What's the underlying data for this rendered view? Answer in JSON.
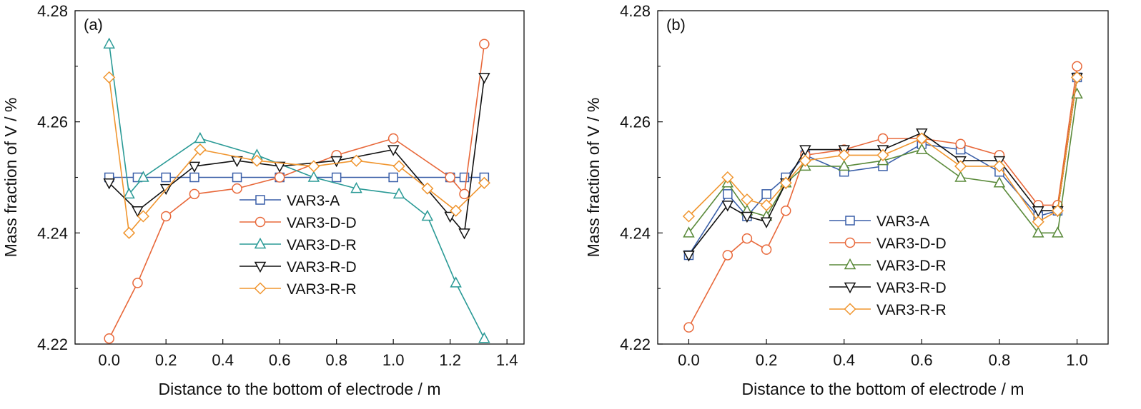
{
  "chart_data": [
    {
      "type": "line",
      "panel_label": "(a)",
      "xlabel": "Distance to the bottom of electrode / m",
      "ylabel": "Mass fraction of V / %",
      "xlim": [
        -0.12,
        1.46
      ],
      "ylim": [
        4.22,
        4.28
      ],
      "x_ticks": [
        0.0,
        0.2,
        0.4,
        0.6,
        0.8,
        1.0,
        1.2,
        1.4
      ],
      "x_tick_labels": [
        "0.0",
        "0.2",
        "0.4",
        "0.6",
        "0.8",
        "1.0",
        "1.2",
        "1.4"
      ],
      "y_ticks": [
        4.22,
        4.24,
        4.26,
        4.28
      ],
      "y_tick_labels": [
        "4.22",
        "4.24",
        "4.26",
        "4.28"
      ],
      "grid": false,
      "legend_position": "center-right",
      "series": [
        {
          "name": "VAR3-A",
          "color": "#3a5fa8",
          "marker": "square",
          "x": [
            0.0,
            0.1,
            0.2,
            0.3,
            0.45,
            0.6,
            0.8,
            1.0,
            1.2,
            1.25,
            1.32
          ],
          "y": [
            4.25,
            4.25,
            4.25,
            4.25,
            4.25,
            4.25,
            4.25,
            4.25,
            4.25,
            4.25,
            4.25
          ]
        },
        {
          "name": "VAR3-D-D",
          "color": "#e8683a",
          "marker": "circle",
          "x": [
            0.0,
            0.1,
            0.2,
            0.3,
            0.45,
            0.6,
            0.8,
            1.0,
            1.2,
            1.25,
            1.32
          ],
          "y": [
            4.221,
            4.231,
            4.243,
            4.247,
            4.248,
            4.25,
            4.254,
            4.257,
            4.25,
            4.247,
            4.274
          ]
        },
        {
          "name": "VAR3-D-R",
          "color": "#2a9a96",
          "marker": "triangle-up",
          "x": [
            0.0,
            0.07,
            0.12,
            0.32,
            0.52,
            0.72,
            0.87,
            1.02,
            1.12,
            1.22,
            1.32
          ],
          "y": [
            4.274,
            4.247,
            4.25,
            4.257,
            4.254,
            4.25,
            4.248,
            4.247,
            4.243,
            4.231,
            4.221
          ]
        },
        {
          "name": "VAR3-R-D",
          "color": "#111111",
          "marker": "triangle-down",
          "x": [
            0.0,
            0.1,
            0.2,
            0.3,
            0.45,
            0.6,
            0.8,
            1.0,
            1.2,
            1.25,
            1.32
          ],
          "y": [
            4.249,
            4.244,
            4.248,
            4.252,
            4.253,
            4.252,
            4.253,
            4.255,
            4.243,
            4.24,
            4.268
          ]
        },
        {
          "name": "VAR3-R-R",
          "color": "#f0952e",
          "marker": "diamond",
          "x": [
            0.0,
            0.07,
            0.12,
            0.32,
            0.52,
            0.72,
            0.87,
            1.02,
            1.12,
            1.22,
            1.32
          ],
          "y": [
            4.268,
            4.24,
            4.243,
            4.255,
            4.253,
            4.252,
            4.253,
            4.252,
            4.248,
            4.244,
            4.249
          ]
        }
      ]
    },
    {
      "type": "line",
      "panel_label": "(b)",
      "xlabel": "Distance to the bottom of electrode / m",
      "ylabel": "Mass fraction of V / %",
      "xlim": [
        -0.08,
        1.08
      ],
      "ylim": [
        4.22,
        4.28
      ],
      "x_ticks": [
        0.0,
        0.2,
        0.4,
        0.6,
        0.8,
        1.0
      ],
      "x_tick_labels": [
        "0.0",
        "0.2",
        "0.4",
        "0.6",
        "0.8",
        "1.0"
      ],
      "y_ticks": [
        4.22,
        4.24,
        4.26,
        4.28
      ],
      "y_tick_labels": [
        "4.22",
        "4.24",
        "4.26",
        "4.28"
      ],
      "grid": false,
      "legend_position": "lower-center",
      "series": [
        {
          "name": "VAR3-A",
          "color": "#3a5fa8",
          "marker": "square",
          "x": [
            0.0,
            0.1,
            0.15,
            0.2,
            0.25,
            0.3,
            0.4,
            0.5,
            0.6,
            0.7,
            0.8,
            0.9,
            0.95,
            1.0
          ],
          "y": [
            4.236,
            4.247,
            4.243,
            4.247,
            4.25,
            4.254,
            4.251,
            4.252,
            4.256,
            4.255,
            4.251,
            4.243,
            4.244,
            4.268
          ]
        },
        {
          "name": "VAR3-D-D",
          "color": "#e8683a",
          "marker": "circle",
          "x": [
            0.0,
            0.1,
            0.15,
            0.2,
            0.25,
            0.3,
            0.4,
            0.5,
            0.6,
            0.7,
            0.8,
            0.9,
            0.95,
            1.0
          ],
          "y": [
            4.223,
            4.236,
            4.239,
            4.237,
            4.244,
            4.254,
            4.255,
            4.257,
            4.257,
            4.256,
            4.254,
            4.245,
            4.245,
            4.27
          ]
        },
        {
          "name": "VAR3-D-R",
          "color": "#5a8a3a",
          "marker": "triangle-up",
          "x": [
            0.0,
            0.1,
            0.15,
            0.2,
            0.25,
            0.3,
            0.4,
            0.5,
            0.6,
            0.7,
            0.8,
            0.9,
            0.95,
            1.0
          ],
          "y": [
            4.24,
            4.249,
            4.244,
            4.243,
            4.249,
            4.252,
            4.252,
            4.253,
            4.255,
            4.25,
            4.249,
            4.24,
            4.24,
            4.265
          ]
        },
        {
          "name": "VAR3-R-D",
          "color": "#111111",
          "marker": "triangle-down",
          "x": [
            0.0,
            0.1,
            0.15,
            0.2,
            0.25,
            0.3,
            0.4,
            0.5,
            0.6,
            0.7,
            0.8,
            0.9,
            0.95,
            1.0
          ],
          "y": [
            4.236,
            4.245,
            4.243,
            4.242,
            4.249,
            4.255,
            4.255,
            4.255,
            4.258,
            4.253,
            4.253,
            4.244,
            4.244,
            4.268
          ]
        },
        {
          "name": "VAR3-R-R",
          "color": "#f0952e",
          "marker": "diamond",
          "x": [
            0.0,
            0.1,
            0.15,
            0.2,
            0.25,
            0.3,
            0.4,
            0.5,
            0.6,
            0.7,
            0.8,
            0.9,
            0.95,
            1.0
          ],
          "y": [
            4.243,
            4.25,
            4.246,
            4.245,
            4.249,
            4.253,
            4.254,
            4.254,
            4.257,
            4.252,
            4.252,
            4.242,
            4.244,
            4.268
          ]
        }
      ]
    }
  ]
}
